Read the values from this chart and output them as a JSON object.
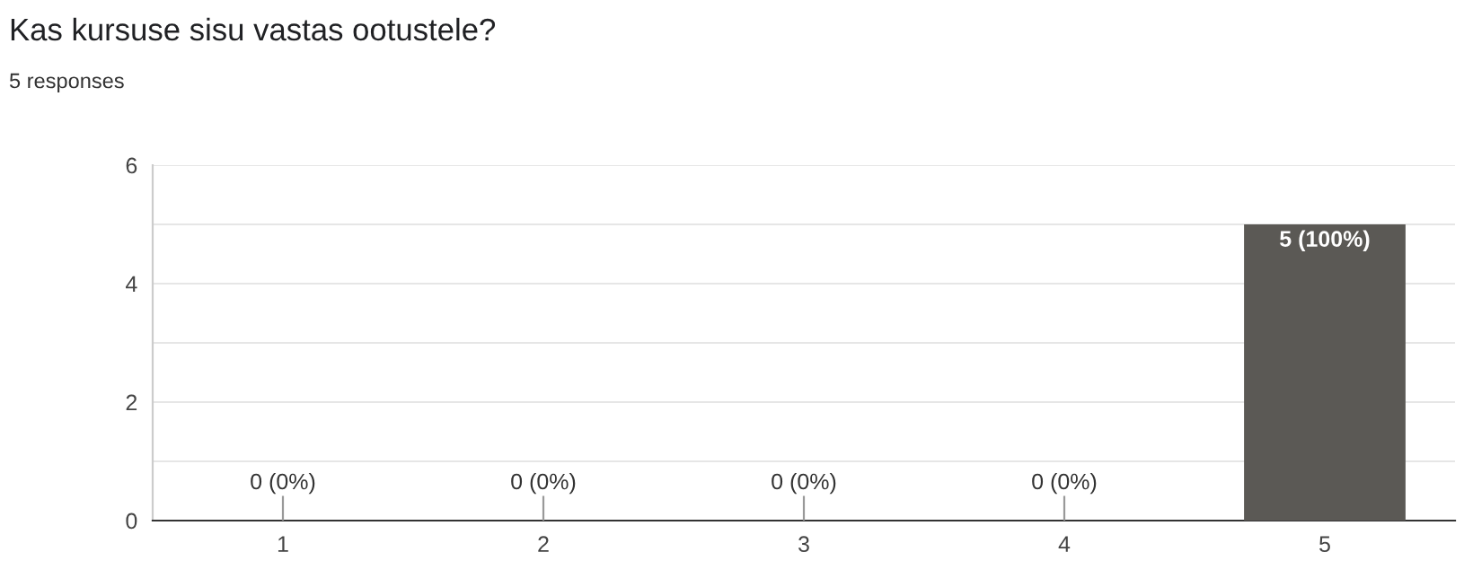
{
  "chart_data": {
    "type": "bar",
    "title": "Kas kursuse sisu vastas ootustele?",
    "subtitle": "5 responses",
    "categories": [
      "1",
      "2",
      "3",
      "4",
      "5"
    ],
    "values": [
      0,
      0,
      0,
      0,
      5
    ],
    "color": "#5b5955",
    "value_labels": [
      "0 (0%)",
      "0 (0%)",
      "0 (0%)",
      "0 (0%)",
      "5 (100%)"
    ],
    "ylim": [
      0,
      6
    ],
    "yticks": [
      0,
      {
        "value": 1,
        "label": null
      },
      2,
      {
        "value": 3,
        "label": null
      },
      4,
      {
        "value": 5,
        "label": null
      },
      6
    ],
    "grid": "y",
    "legend": false
  }
}
